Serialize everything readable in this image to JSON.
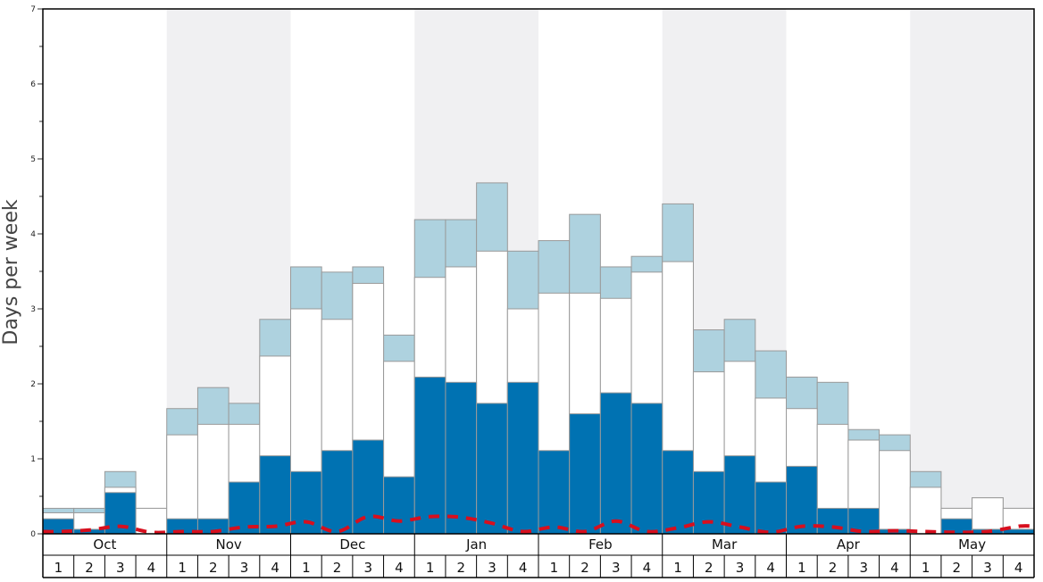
{
  "chart_data": {
    "type": "bar",
    "ylabel": "Days per week",
    "ylim": [
      0,
      7
    ],
    "y_ticks": [
      "0",
      "1",
      "2",
      "3",
      "4",
      "5",
      "6",
      "7"
    ],
    "months": [
      "Oct",
      "Nov",
      "Dec",
      "Jan",
      "Feb",
      "Mar",
      "Apr",
      "May"
    ],
    "week_labels": [
      "1",
      "2",
      "3",
      "4",
      "1",
      "2",
      "3",
      "4",
      "1",
      "2",
      "3",
      "4",
      "1",
      "2",
      "3",
      "4",
      "1",
      "2",
      "3",
      "4",
      "1",
      "2",
      "3",
      "4",
      "1",
      "2",
      "3",
      "4",
      "1",
      "2",
      "3",
      "4"
    ],
    "series": [
      {
        "values": [
          0.2,
          0.06,
          0.55,
          0.0,
          0.2,
          0.2,
          0.69,
          1.04,
          0.83,
          1.11,
          1.25,
          0.76,
          2.09,
          2.02,
          1.74,
          2.02,
          1.11,
          1.6,
          1.88,
          1.74,
          1.11,
          0.83,
          1.04,
          0.69,
          0.9,
          0.34,
          0.34,
          0.06,
          0.0,
          0.2,
          0.06,
          0.06
        ]
      },
      {
        "values": [
          0.28,
          0.28,
          0.62,
          0.34,
          1.32,
          1.46,
          1.46,
          2.37,
          3.0,
          2.86,
          3.34,
          2.3,
          3.42,
          3.56,
          3.77,
          3.0,
          3.21,
          3.21,
          3.14,
          3.49,
          3.63,
          2.16,
          2.3,
          1.81,
          1.67,
          1.46,
          1.25,
          1.11,
          0.62,
          0.34,
          0.48,
          0.34
        ]
      },
      {
        "values": [
          0.34,
          0.34,
          0.83,
          0.34,
          1.67,
          1.95,
          1.74,
          2.86,
          3.56,
          3.49,
          3.56,
          2.65,
          4.19,
          4.19,
          4.68,
          3.77,
          3.91,
          4.26,
          3.56,
          3.7,
          4.4,
          2.72,
          2.86,
          2.44,
          2.09,
          2.02,
          1.39,
          1.32,
          0.83,
          0.34,
          0.48,
          0.34
        ]
      },
      {
        "values": [
          0.03,
          0.05,
          0.1,
          0.02,
          0.03,
          0.03,
          0.09,
          0.1,
          0.16,
          0.03,
          0.23,
          0.17,
          0.23,
          0.22,
          0.14,
          0.03,
          0.09,
          0.03,
          0.17,
          0.03,
          0.08,
          0.16,
          0.09,
          0.02,
          0.1,
          0.09,
          0.03,
          0.04,
          0.03,
          0.02,
          0.03,
          0.1
        ]
      }
    ],
    "colors": {
      "bottom": "#0072b2",
      "middle": "#ffffff",
      "top": "#aed2df",
      "line": "#d70f1e",
      "band_shaded": "#f0f0f2",
      "bar_border": "#9a9a9a",
      "frame": "#000000",
      "axis_text": "#444444"
    },
    "grid": false,
    "legend": "none"
  }
}
